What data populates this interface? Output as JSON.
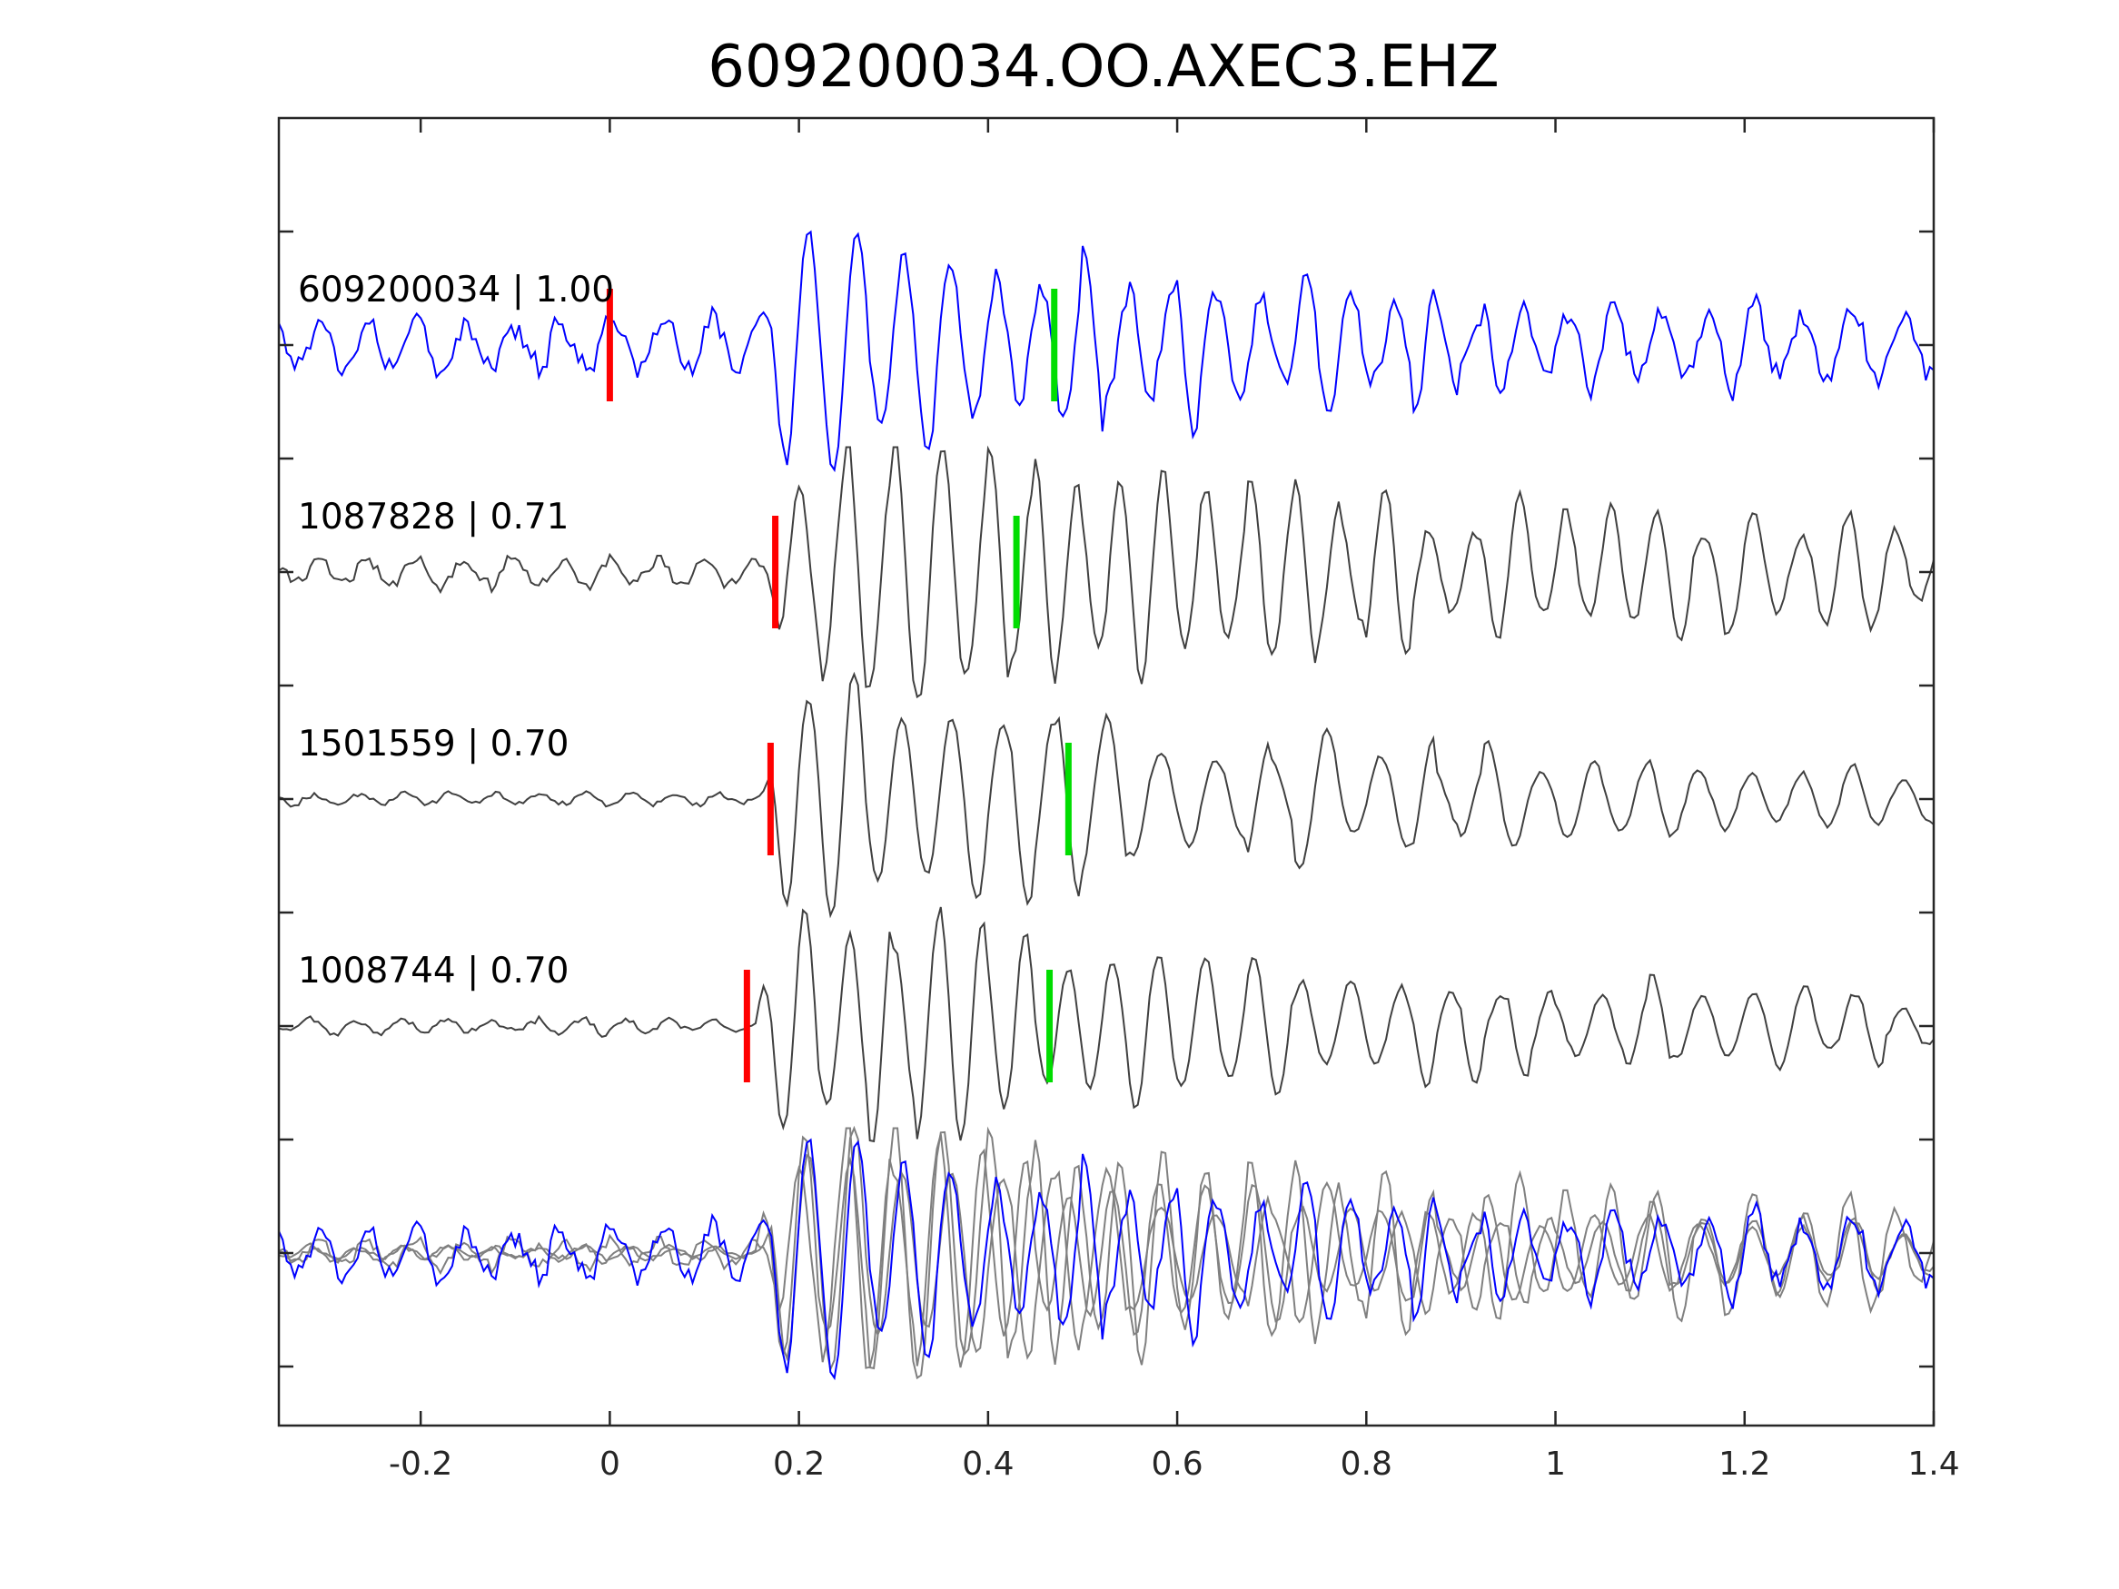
{
  "chart_data": {
    "type": "line",
    "title": "609200034.OO.AXEC3.EHZ",
    "xlabel": "",
    "ylabel": "",
    "xlim": [
      -0.35,
      1.4
    ],
    "xticks": [
      -0.2,
      0,
      0.2,
      0.4,
      0.6,
      0.8,
      1.0,
      1.2,
      1.4
    ],
    "xtick_labels": [
      "-0.2",
      "0",
      "0.2",
      "0.4",
      "0.6",
      "0.8",
      "1",
      "1.2",
      "1.4"
    ],
    "grid": false,
    "legend": "none",
    "colors": {
      "master": "#0000ff",
      "neighbor": "#404040",
      "overlay_neighbor": "#808080",
      "p_pick": "#ff0000",
      "s_pick": "#00dd00"
    },
    "series": [
      {
        "label": "609200034 | 1.00",
        "role": "master",
        "p_pick": 0.0,
        "s_pick": 0.47,
        "onset": 0.165
      },
      {
        "label": "1087828 | 0.71",
        "role": "neighbor",
        "p_pick": 0.175,
        "s_pick": 0.43,
        "onset": 0.17
      },
      {
        "label": "1501559 | 0.70",
        "role": "neighbor",
        "p_pick": 0.17,
        "s_pick": 0.485,
        "onset": 0.165
      },
      {
        "label": "1008744 | 0.70",
        "role": "neighbor",
        "p_pick": 0.145,
        "s_pick": 0.465,
        "onset": 0.155
      }
    ]
  }
}
